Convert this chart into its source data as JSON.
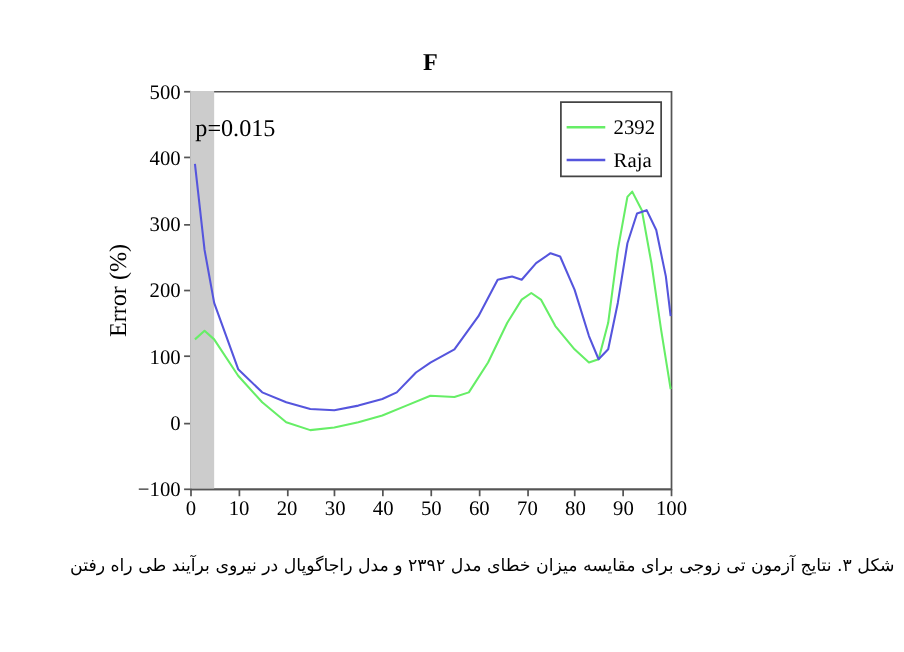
{
  "chart_data": {
    "type": "line",
    "title": "F",
    "ylabel": "Error (%)",
    "xlim": [
      0,
      100
    ],
    "xticks": [
      0,
      10,
      20,
      30,
      40,
      50,
      60,
      70,
      80,
      90,
      100
    ],
    "ylim": [
      -100,
      500
    ],
    "yticks": [
      -100,
      0,
      100,
      200,
      300,
      400,
      500
    ],
    "grid": false,
    "legend": "top right",
    "line_style": "solid",
    "marker": "none",
    "series": [
      {
        "name": "2392",
        "color": "#66ee66",
        "x": [
          1,
          3,
          5,
          10,
          15,
          20,
          25,
          30,
          35,
          40,
          45,
          50,
          55,
          58,
          62,
          66,
          69,
          71,
          73,
          76,
          80,
          83,
          85,
          87,
          89,
          91,
          92,
          94,
          96,
          98,
          100
        ],
        "values": [
          125,
          138,
          125,
          70,
          30,
          0,
          -12,
          -8,
          0,
          10,
          25,
          40,
          38,
          45,
          90,
          150,
          185,
          195,
          185,
          145,
          110,
          90,
          95,
          150,
          260,
          340,
          348,
          320,
          240,
          140,
          50
        ]
      },
      {
        "name": "Raja",
        "color": "#5555dd",
        "x": [
          1,
          3,
          5,
          10,
          15,
          20,
          25,
          30,
          35,
          40,
          43,
          47,
          50,
          55,
          60,
          64,
          67,
          69,
          72,
          75,
          77,
          80,
          83,
          85,
          87,
          89,
          91,
          93,
          95,
          97,
          99,
          100
        ],
        "values": [
          390,
          260,
          180,
          80,
          45,
          30,
          20,
          18,
          25,
          35,
          45,
          75,
          90,
          110,
          160,
          215,
          220,
          215,
          240,
          255,
          250,
          200,
          130,
          95,
          110,
          180,
          270,
          315,
          320,
          290,
          220,
          160
        ]
      }
    ],
    "bands": [
      {
        "axis": "x",
        "from": 0,
        "to": 5,
        "label": "p=0.015",
        "color": "#cccccc"
      }
    ],
    "annotations": [
      "شکل ۳. نتایج آزمون تی زوجی برای مقایسه میزان خطای مدل ۲۳۹۲ و مدل راجاگوپال در نیروی برآیند طی راه رفتن"
    ]
  }
}
